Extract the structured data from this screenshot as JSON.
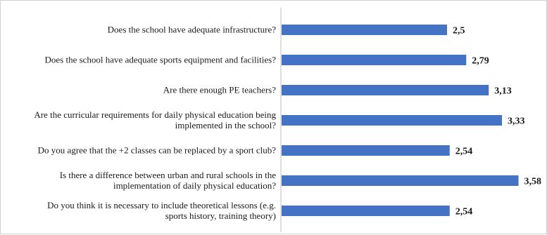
{
  "chart_data": {
    "type": "bar",
    "orientation": "horizontal",
    "categories": [
      [
        "Does the school have adequate infrastructure?"
      ],
      [
        "Does the school have adequate sports equipment and facilities?"
      ],
      [
        "Are there enough PE teachers?"
      ],
      [
        "Are the curricular requirements for daily physical education being",
        "implemented in the school?"
      ],
      [
        "Do you agree that the +2 classes can be replaced by a sport club?"
      ],
      [
        "Is there a difference between urban and rural schools in the",
        "implementation of daily physical education?"
      ],
      [
        "Do you think it is necessary to include theoretical lessons (e.g.",
        "sports history, training theory)"
      ]
    ],
    "values": [
      2.5,
      2.79,
      3.13,
      3.33,
      2.54,
      3.58,
      2.54
    ],
    "value_labels": [
      "2,5",
      "2,79",
      "3,13",
      "3,33",
      "2,54",
      "3,58",
      "2,54"
    ],
    "xlim": [
      0,
      3.9
    ],
    "bar_color": "#4472c4",
    "axis_color": "#bfbfbf",
    "grid": false,
    "legend": false
  }
}
